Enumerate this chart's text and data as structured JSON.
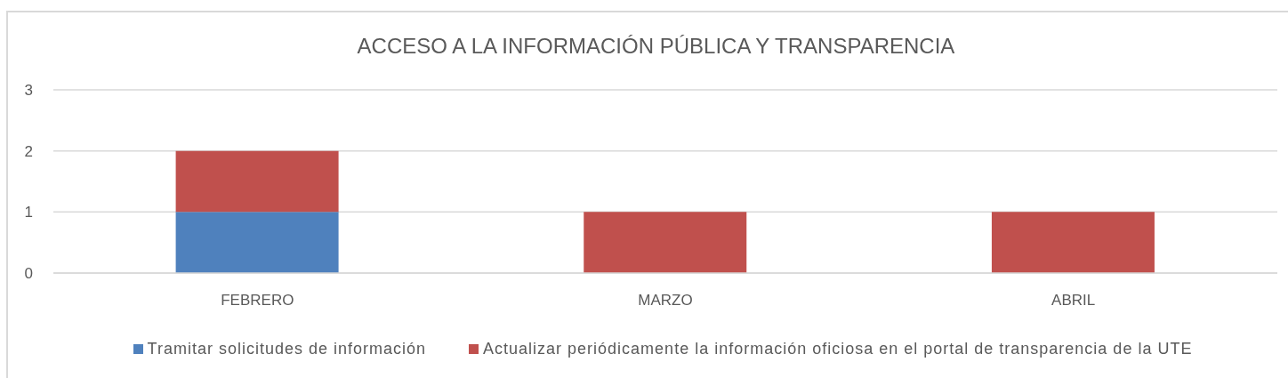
{
  "chart_data": {
    "type": "bar",
    "title": "ACCESO A LA INFORMACIÓN PÚBLICA Y TRANSPARENCIA",
    "categories": [
      "FEBRERO",
      "MARZO",
      "ABRIL"
    ],
    "series": [
      {
        "name": "Tramitar solicitudes de información",
        "color": "#4f81bd",
        "values": [
          1,
          null,
          null
        ]
      },
      {
        "name": "Actualizar periódicamente la información oficiosa en el portal de transparencia de la UTE",
        "color": "#c0504d",
        "values": [
          1,
          1,
          1
        ]
      }
    ],
    "stacked": true,
    "ylim": [
      0,
      3
    ],
    "yticks": [
      0,
      1,
      2,
      3
    ],
    "grid": "y",
    "legend": "bottom"
  }
}
